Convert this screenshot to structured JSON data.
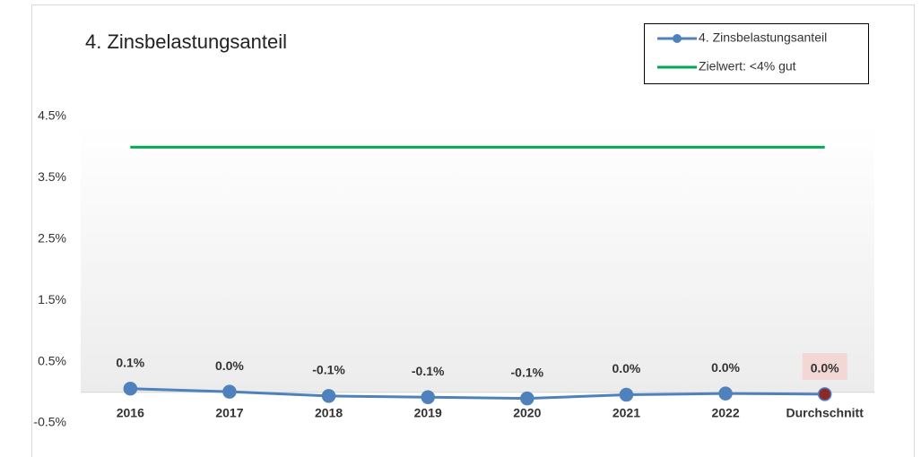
{
  "chart_data": {
    "type": "line",
    "title": "4.  Zinsbelastungsanteil",
    "categories": [
      "2016",
      "2017",
      "2018",
      "2019",
      "2020",
      "2021",
      "2022",
      "Durchschnitt"
    ],
    "series": [
      {
        "name": "4. Zinsbelastungsanteil",
        "color": "#4f81bd",
        "last_point_color": "#8b2a2a",
        "values": [
          0.06,
          0.01,
          -0.06,
          -0.08,
          -0.1,
          -0.04,
          -0.02,
          -0.03
        ],
        "value_labels": [
          "0.1%",
          "0.0%",
          "-0.1%",
          "-0.1%",
          "-0.1%",
          "0.0%",
          "0.0%",
          "0.0%"
        ]
      },
      {
        "name": "Zielwert: <4% gut",
        "color": "#00a650",
        "values": [
          4,
          4,
          4,
          4,
          4,
          4,
          4,
          4
        ]
      }
    ],
    "ylim": [
      -0.5,
      4.5
    ],
    "yticks": [
      {
        "value": -0.5,
        "label": "-0.5%"
      },
      {
        "value": 0.5,
        "label": "0.5%"
      },
      {
        "value": 1.5,
        "label": "1.5%"
      },
      {
        "value": 2.5,
        "label": "2.5%"
      },
      {
        "value": 3.5,
        "label": "3.5%"
      },
      {
        "value": 4.5,
        "label": "4.5%"
      }
    ],
    "legend": "top-right"
  }
}
